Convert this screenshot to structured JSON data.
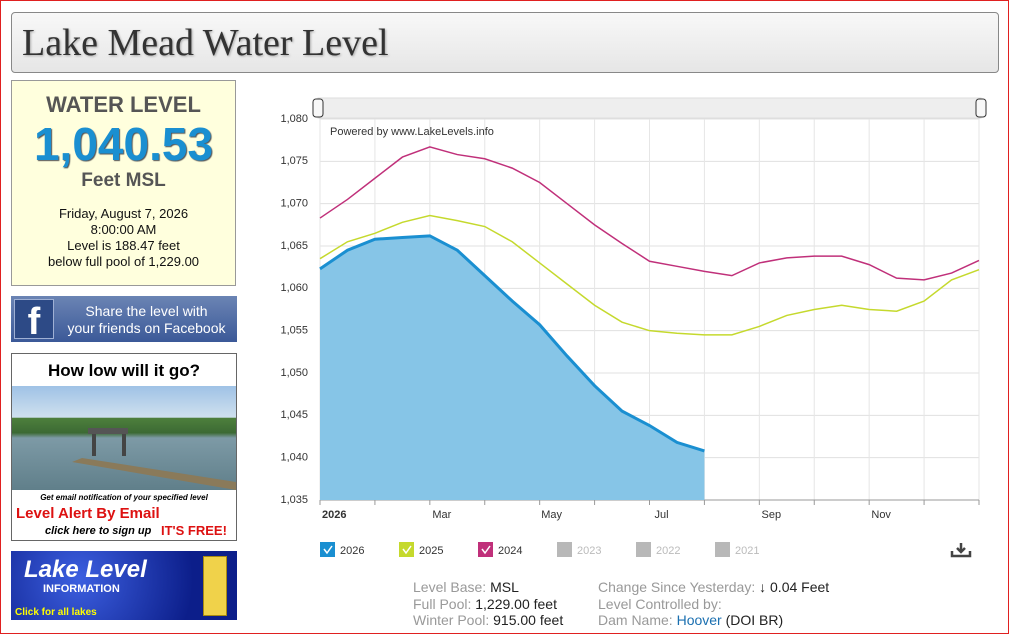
{
  "header": {
    "title": "Lake Mead Water Level"
  },
  "level_box": {
    "heading": "WATER LEVEL",
    "level": "1,040.53",
    "unit": "Feet MSL",
    "date": "Friday, August 7, 2026",
    "time": "8:00:00 AM",
    "line1": "Level is 188.47 feet",
    "line2": "below full pool of 1,229.00"
  },
  "facebook": {
    "icon": "f",
    "line1": "Share the level with",
    "line2": "your friends on Facebook"
  },
  "alert_ad": {
    "title": "How low will it go?",
    "note": "Get email notification of your specified level",
    "headline": "Level Alert By Email",
    "signup": "click here to sign up",
    "free": "IT'S FREE!"
  },
  "info_ad": {
    "line1": "Lake Level",
    "line2": "INFORMATION",
    "line3": "Click for all lakes"
  },
  "chart_data": {
    "type": "line",
    "credit": "Powered by www.LakeLevels.info",
    "categories": [
      "2026",
      null,
      null,
      null,
      "Mar",
      null,
      null,
      null,
      "May",
      null,
      null,
      null,
      "Jul",
      null,
      null,
      null,
      "Sep",
      null,
      null,
      null,
      "Nov",
      null,
      null,
      null,
      null
    ],
    "series": [
      {
        "name": "2026",
        "color": "#1a8fd1",
        "fill": "#86c5e7",
        "values": [
          1062.3,
          1064.5,
          1065.8,
          1066,
          1066.2,
          1064.5,
          1061.5,
          1058.5,
          1055.7,
          1052,
          1048.5,
          1045.5,
          1043.8,
          1041.8,
          1040.8,
          null,
          null,
          null,
          null,
          null,
          null,
          null,
          null,
          null,
          null
        ]
      },
      {
        "name": "2025",
        "color": "#c5d92d",
        "values": [
          1063.5,
          1065.5,
          1066.5,
          1067.8,
          1068.6,
          1068,
          1067.3,
          1065.5,
          1063,
          1060.5,
          1058,
          1056,
          1055,
          1054.7,
          1054.5,
          1054.5,
          1055.5,
          1056.8,
          1057.5,
          1058,
          1057.5,
          1057.3,
          1058.5,
          1061,
          1062.2
        ]
      },
      {
        "name": "2024",
        "color": "#c0307a",
        "values": [
          1068.3,
          1070.5,
          1073,
          1075.5,
          1076.7,
          1075.8,
          1075.3,
          1074.2,
          1072.5,
          1070,
          1067.5,
          1065.3,
          1063.2,
          1062.6,
          1062,
          1061.5,
          1063,
          1063.6,
          1063.8,
          1063.8,
          1062.8,
          1061.2,
          1061,
          1061.8,
          1063.3
        ]
      }
    ],
    "legend_disabled": [
      "2023",
      "2022",
      "2021"
    ],
    "ylim": [
      1035,
      1080
    ],
    "yticks": [
      {
        "value": 1035,
        "label": "1,035"
      },
      {
        "value": 1040,
        "label": "1,040"
      },
      {
        "value": 1045,
        "label": "1,045"
      },
      {
        "value": 1050,
        "label": "1,050"
      },
      {
        "value": 1055,
        "label": "1,055"
      },
      {
        "value": 1060,
        "label": "1,060"
      },
      {
        "value": 1065,
        "label": "1,065"
      },
      {
        "value": 1070,
        "label": "1,070"
      },
      {
        "value": 1075,
        "label": "1,075"
      },
      {
        "value": 1080,
        "label": "1,080"
      }
    ],
    "grid": true
  },
  "stats": {
    "col1": [
      {
        "label": "Level Base:",
        "value": "MSL"
      },
      {
        "label": "Full Pool:",
        "value": "1,229.00 feet"
      },
      {
        "label": "Winter Pool:",
        "value": "915.00 feet"
      }
    ],
    "change_label": "Change Since Yesterday:",
    "change_value": "↓ 0.04 Feet",
    "controlled_label": "Level Controlled by:",
    "dam_label": "Dam Name:",
    "dam_link": "Hoover",
    "dam_agency": "(DOI BR)"
  }
}
